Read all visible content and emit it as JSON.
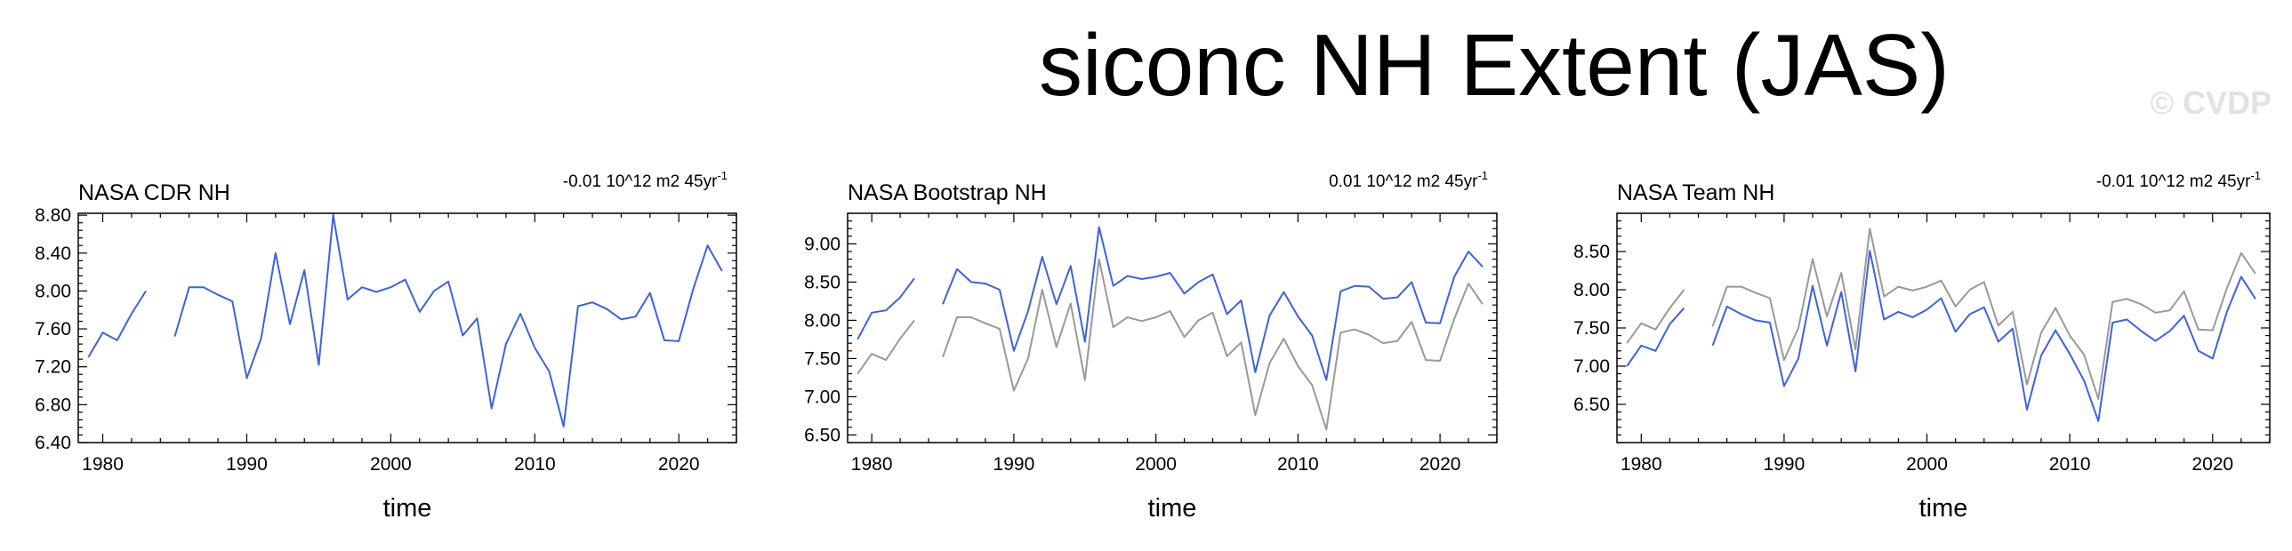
{
  "title": "siconc NH Extent (JAS)",
  "watermark": "© CVDP",
  "colors": {
    "observed": "#3d63db",
    "reference": "#999999",
    "frame": "#000000",
    "watermark": "#e2e2e2"
  },
  "chart_data": [
    {
      "type": "line",
      "title": "NASA CDR NH",
      "trend": "-0.01 10^12 m2 45yr",
      "trend_superscript": "-1",
      "xlabel": "time",
      "ylabel": "",
      "xlim": [
        1978.3,
        2024
      ],
      "ylim": [
        6.4,
        8.82
      ],
      "xticks": [
        1980,
        1990,
        2000,
        2010,
        2020
      ],
      "yticks": [
        "6.40",
        "6.80",
        "7.20",
        "7.60",
        "8.00",
        "8.40",
        "8.80"
      ],
      "x": [
        1979,
        1980,
        1981,
        1982,
        1983,
        1984,
        1985,
        1986,
        1987,
        1988,
        1989,
        1990,
        1991,
        1992,
        1993,
        1994,
        1995,
        1996,
        1997,
        1998,
        1999,
        2000,
        2001,
        2002,
        2003,
        2004,
        2005,
        2006,
        2007,
        2008,
        2009,
        2010,
        2011,
        2012,
        2013,
        2014,
        2015,
        2016,
        2017,
        2018,
        2019,
        2020,
        2021,
        2022,
        2023
      ],
      "series": [
        {
          "color": "#3d63db",
          "values": [
            7.3,
            7.56,
            7.48,
            7.76,
            8.0,
            null,
            7.52,
            8.04,
            8.04,
            7.96,
            7.89,
            7.08,
            7.5,
            8.4,
            7.65,
            8.22,
            7.22,
            8.8,
            7.91,
            8.04,
            7.99,
            8.04,
            8.12,
            7.78,
            8.0,
            8.1,
            7.53,
            7.71,
            6.76,
            7.44,
            7.76,
            7.4,
            7.15,
            6.57,
            7.84,
            7.88,
            7.81,
            7.7,
            7.73,
            7.98,
            7.48,
            7.47,
            8.02,
            8.48,
            8.21
          ]
        }
      ]
    },
    {
      "type": "line",
      "title": "NASA Bootstrap NH",
      "trend": "0.01 10^12 m2 45yr",
      "trend_superscript": "-1",
      "xlabel": "time",
      "ylabel": "",
      "xlim": [
        1978.3,
        2024
      ],
      "ylim": [
        6.4,
        9.4
      ],
      "xticks": [
        1980,
        1990,
        2000,
        2010,
        2020
      ],
      "yticks": [
        "6.50",
        "7.00",
        "7.50",
        "8.00",
        "8.50",
        "9.00"
      ],
      "x": [
        1979,
        1980,
        1981,
        1982,
        1983,
        1984,
        1985,
        1986,
        1987,
        1988,
        1989,
        1990,
        1991,
        1992,
        1993,
        1994,
        1995,
        1996,
        1997,
        1998,
        1999,
        2000,
        2001,
        2002,
        2003,
        2004,
        2005,
        2006,
        2007,
        2008,
        2009,
        2010,
        2011,
        2012,
        2013,
        2014,
        2015,
        2016,
        2017,
        2018,
        2019,
        2020,
        2021,
        2022,
        2023
      ],
      "series": [
        {
          "color": "#3d63db",
          "values": [
            7.75,
            8.1,
            8.13,
            8.3,
            8.55,
            null,
            8.21,
            8.67,
            8.5,
            8.48,
            8.4,
            7.6,
            8.12,
            8.83,
            8.21,
            8.71,
            7.72,
            9.22,
            8.45,
            8.58,
            8.54,
            8.57,
            8.62,
            8.35,
            8.5,
            8.6,
            8.08,
            8.26,
            7.32,
            8.06,
            8.37,
            8.05,
            7.8,
            7.22,
            8.38,
            8.45,
            8.44,
            8.28,
            8.3,
            8.5,
            7.97,
            7.96,
            8.57,
            8.9,
            8.7
          ]
        },
        {
          "color": "#999999",
          "values": [
            7.3,
            7.56,
            7.48,
            7.76,
            8.0,
            null,
            7.52,
            8.04,
            8.04,
            7.96,
            7.89,
            7.08,
            7.5,
            8.4,
            7.65,
            8.22,
            7.22,
            8.8,
            7.91,
            8.04,
            7.99,
            8.04,
            8.12,
            7.78,
            8.0,
            8.1,
            7.53,
            7.71,
            6.76,
            7.44,
            7.76,
            7.4,
            7.15,
            6.57,
            7.84,
            7.88,
            7.81,
            7.7,
            7.73,
            7.98,
            7.48,
            7.47,
            8.02,
            8.48,
            8.21
          ]
        }
      ]
    },
    {
      "type": "line",
      "title": "NASA Team NH",
      "trend": "-0.01 10^12 m2 45yr",
      "trend_superscript": "-1",
      "xlabel": "time",
      "ylabel": "",
      "xlim": [
        1978.3,
        2024
      ],
      "ylim": [
        6.0,
        9.0
      ],
      "xticks": [
        1980,
        1990,
        2000,
        2010,
        2020
      ],
      "yticks": [
        "6.50",
        "7.00",
        "7.50",
        "8.00",
        "8.50"
      ],
      "x": [
        1979,
        1980,
        1981,
        1982,
        1983,
        1984,
        1985,
        1986,
        1987,
        1988,
        1989,
        1990,
        1991,
        1992,
        1993,
        1994,
        1995,
        1996,
        1997,
        1998,
        1999,
        2000,
        2001,
        2002,
        2003,
        2004,
        2005,
        2006,
        2007,
        2008,
        2009,
        2010,
        2011,
        2012,
        2013,
        2014,
        2015,
        2016,
        2017,
        2018,
        2019,
        2020,
        2021,
        2022,
        2023
      ],
      "series": [
        {
          "color": "#3d63db",
          "values": [
            7.0,
            7.27,
            7.2,
            7.55,
            7.76,
            null,
            7.27,
            7.78,
            7.68,
            7.6,
            7.57,
            6.74,
            7.1,
            8.05,
            7.27,
            7.97,
            6.93,
            8.51,
            7.61,
            7.71,
            7.64,
            7.74,
            7.89,
            7.45,
            7.68,
            7.77,
            7.32,
            7.49,
            6.43,
            7.14,
            7.47,
            7.16,
            6.81,
            6.28,
            7.57,
            7.61,
            7.46,
            7.33,
            7.46,
            7.66,
            7.2,
            7.1,
            7.71,
            8.17,
            7.88
          ]
        },
        {
          "color": "#999999",
          "values": [
            7.3,
            7.56,
            7.48,
            7.76,
            8.0,
            null,
            7.52,
            8.04,
            8.04,
            7.96,
            7.89,
            7.08,
            7.5,
            8.4,
            7.65,
            8.22,
            7.22,
            8.8,
            7.91,
            8.04,
            7.99,
            8.04,
            8.12,
            7.78,
            8.0,
            8.1,
            7.53,
            7.71,
            6.76,
            7.44,
            7.76,
            7.4,
            7.15,
            6.57,
            7.84,
            7.88,
            7.81,
            7.7,
            7.73,
            7.98,
            7.48,
            7.47,
            8.02,
            8.48,
            8.21
          ]
        }
      ]
    }
  ]
}
